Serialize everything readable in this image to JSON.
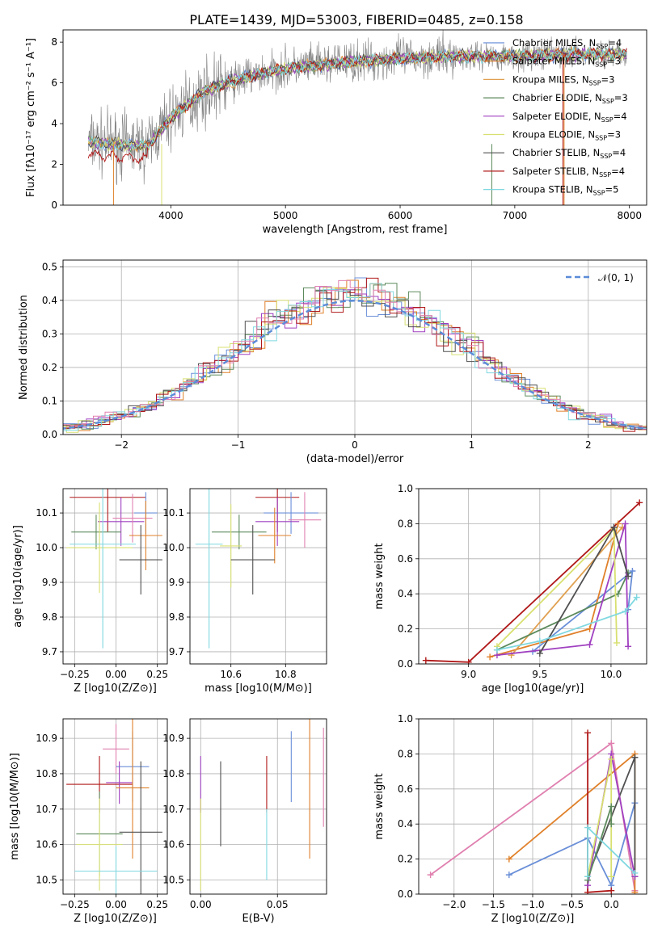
{
  "figure": {
    "title": "PLATE=1439, MJD=53003, FIBERID=0485, z=0.158"
  },
  "colors": {
    "Chabrier MILES": "#6a8fd8",
    "Salpeter MILES": "#e0802a",
    "Kroupa MILES": "#e0a050",
    "Chabrier ELODIE": "#5c8a5c",
    "Salpeter ELODIE": "#a040c0",
    "Kroupa ELODIE": "#d8e070",
    "Chabrier STELIB": "#505050",
    "Salpeter STELIB": "#b01818",
    "Kroupa STELIB": "#80d8e0",
    "extra": "#e080b0",
    "normal": "#5b8bd8"
  },
  "chart_data": [
    {
      "type": "line",
      "id": "spectrum",
      "xlabel": "wavelength [Angstrom, rest frame]",
      "ylabel": "Flux [fλ10⁻¹⁷ erg cm⁻² s⁻¹ A⁻¹]",
      "xlim": [
        3060,
        8150
      ],
      "ylim": [
        0,
        8.6
      ],
      "xticks": [
        "4000",
        "5000",
        "6000",
        "7000",
        "8000"
      ],
      "yticks": [
        "0",
        "2",
        "4",
        "6",
        "8"
      ],
      "legend_position": "top-right",
      "legend": [
        {
          "name": "Chabrier MILES",
          "sub": "SSP",
          "n": "=4"
        },
        {
          "name": "Salpeter MILES",
          "sub": "SSP",
          "n": "=3"
        },
        {
          "name": "Kroupa MILES",
          "sub": "SSP",
          "n": "=3"
        },
        {
          "name": "Chabrier ELODIE",
          "sub": "SSP",
          "n": "=3"
        },
        {
          "name": "Salpeter ELODIE",
          "sub": "SSP",
          "n": "=4"
        },
        {
          "name": "Kroupa ELODIE",
          "sub": "SSP",
          "n": "=3"
        },
        {
          "name": "Chabrier STELIB",
          "sub": "SSP",
          "n": "=4"
        },
        {
          "name": "Salpeter STELIB",
          "sub": "SSP",
          "n": "=4"
        },
        {
          "name": "Kroupa STELIB",
          "sub": "SSP",
          "n": "=5"
        }
      ],
      "continuum_x": [
        3280,
        3500,
        3800,
        4000,
        4300,
        4600,
        5000,
        5500,
        6000,
        6500,
        7000,
        7500,
        8000
      ],
      "continuum_y": [
        3.1,
        3.0,
        2.9,
        4.3,
        5.6,
        6.2,
        6.7,
        7.0,
        7.2,
        7.3,
        7.3,
        7.4,
        7.4
      ]
    },
    {
      "type": "bar",
      "id": "residual-histogram",
      "xlabel": "(data-model)/error",
      "ylabel": "Normed distribution",
      "xlim": [
        -2.5,
        2.5
      ],
      "ylim": [
        0,
        0.52
      ],
      "xticks": [
        "−2",
        "−1",
        "0",
        "1",
        "2"
      ],
      "yticks": [
        "0.0",
        "0.1",
        "0.2",
        "0.3",
        "0.4",
        "0.5"
      ],
      "legend": [
        "𝒩(0, 1)"
      ],
      "legend_position": "top-right"
    },
    {
      "type": "scatter",
      "id": "age-vs-Z",
      "xlabel": "Z [log10(Z/Z⊙)]",
      "ylabel": "age  [log10(age/yr)]",
      "xlim": [
        -0.32,
        0.31
      ],
      "ylim": [
        9.665,
        10.17
      ],
      "xticks": [
        "−0.25",
        "0.00",
        "0.25"
      ],
      "yticks": [
        "9.7",
        "9.8",
        "9.9",
        "10.0",
        "10.1"
      ],
      "points": [
        {
          "s": "Salpeter STELIB",
          "x": -0.05,
          "y": 10.145,
          "xerr": 0.23,
          "yerr": 0.1
        },
        {
          "s": "Chabrier MILES",
          "x": 0.18,
          "y": 10.1,
          "xerr": 0.07,
          "yerr": 0.06
        },
        {
          "s": "Salpeter ELODIE",
          "x": 0.03,
          "y": 10.075,
          "xerr": 0.14,
          "yerr": 0.07
        },
        {
          "s": "extra",
          "x": 0.1,
          "y": 10.085,
          "xerr": 0.12,
          "yerr": 0.07
        },
        {
          "s": "Chabrier ELODIE",
          "x": -0.12,
          "y": 10.045,
          "xerr": 0.15,
          "yerr": 0.05
        },
        {
          "s": "Salpeter MILES",
          "x": 0.18,
          "y": 10.035,
          "xerr": 0.1,
          "yerr": 0.1
        },
        {
          "s": "Kroupa ELODIE",
          "x": -0.1,
          "y": 10.0,
          "xerr": 0.2,
          "yerr": 0.13
        },
        {
          "s": "Kroupa STELIB",
          "x": -0.08,
          "y": 10.01,
          "xerr": 0.2,
          "yerr": 0.3
        },
        {
          "s": "Chabrier STELIB",
          "x": 0.15,
          "y": 9.965,
          "xerr": 0.13,
          "yerr": 0.1
        }
      ]
    },
    {
      "type": "scatter",
      "id": "age-vs-mass",
      "xlabel": "mass [log10(M/M⊙)]",
      "ylabel": "",
      "xlim": [
        10.45,
        10.95
      ],
      "ylim": [
        9.665,
        10.17
      ],
      "xticks": [
        "10.6",
        "10.8"
      ],
      "yticks": [
        "9.7",
        "9.8",
        "9.9",
        "10.0",
        "10.1"
      ],
      "points": [
        {
          "s": "Salpeter STELIB",
          "x": 10.77,
          "y": 10.145,
          "xerr": 0.08,
          "yerr": 0.1
        },
        {
          "s": "Chabrier MILES",
          "x": 10.82,
          "y": 10.1,
          "xerr": 0.1,
          "yerr": 0.06
        },
        {
          "s": "extra",
          "x": 10.87,
          "y": 10.08,
          "xerr": 0.06,
          "yerr": 0.08
        },
        {
          "s": "Salpeter ELODIE",
          "x": 10.77,
          "y": 10.075,
          "xerr": 0.08,
          "yerr": 0.07
        },
        {
          "s": "Chabrier ELODIE",
          "x": 10.63,
          "y": 10.045,
          "xerr": 0.1,
          "yerr": 0.05
        },
        {
          "s": "Salpeter MILES",
          "x": 10.76,
          "y": 10.035,
          "xerr": 0.06,
          "yerr": 0.08
        },
        {
          "s": "Kroupa ELODIE",
          "x": 10.6,
          "y": 10.005,
          "xerr": 0.04,
          "yerr": 0.12
        },
        {
          "s": "Kroupa STELIB",
          "x": 10.52,
          "y": 10.01,
          "xerr": 0.05,
          "yerr": 0.3
        },
        {
          "s": "Chabrier STELIB",
          "x": 10.68,
          "y": 9.965,
          "xerr": 0.08,
          "yerr": 0.1
        }
      ]
    },
    {
      "type": "line",
      "id": "weight-vs-age",
      "xlabel": "age  [log10(age/yr)]",
      "ylabel": "mass weight",
      "xlim": [
        8.65,
        10.25
      ],
      "ylim": [
        0,
        1
      ],
      "xticks": [
        "9.0",
        "9.5",
        "10.0"
      ],
      "yticks": [
        "0.0",
        "0.2",
        "0.4",
        "0.6",
        "0.8",
        "1.0"
      ],
      "series": [
        {
          "s": "Salpeter STELIB",
          "points": [
            [
              8.7,
              0.02
            ],
            [
              9.0,
              0.01
            ],
            [
              10.2,
              0.92
            ]
          ]
        },
        {
          "s": "Chabrier MILES",
          "points": [
            [
              9.45,
              0.07
            ],
            [
              10.15,
              0.53
            ],
            [
              10.12,
              0.31
            ]
          ]
        },
        {
          "s": "Salpeter MILES",
          "points": [
            [
              9.15,
              0.04
            ],
            [
              9.85,
              0.2
            ],
            [
              10.05,
              0.8
            ]
          ]
        },
        {
          "s": "Kroupa MILES",
          "points": [
            [
              9.3,
              0.05
            ],
            [
              10.08,
              0.78
            ]
          ]
        },
        {
          "s": "Chabrier ELODIE",
          "points": [
            [
              9.2,
              0.08
            ],
            [
              10.05,
              0.4
            ],
            [
              10.12,
              0.52
            ]
          ]
        },
        {
          "s": "Salpeter ELODIE",
          "points": [
            [
              9.2,
              0.05
            ],
            [
              9.85,
              0.11
            ],
            [
              10.1,
              0.8
            ],
            [
              10.12,
              0.1
            ]
          ]
        },
        {
          "s": "Kroupa ELODIE",
          "points": [
            [
              9.2,
              0.1
            ],
            [
              10.02,
              0.77
            ],
            [
              10.04,
              0.12
            ]
          ]
        },
        {
          "s": "Chabrier STELIB",
          "points": [
            [
              9.5,
              0.06
            ],
            [
              10.02,
              0.78
            ],
            [
              10.12,
              0.5
            ]
          ]
        },
        {
          "s": "Kroupa STELIB",
          "points": [
            [
              9.2,
              0.08
            ],
            [
              9.5,
              0.13
            ],
            [
              10.1,
              0.3
            ],
            [
              10.18,
              0.38
            ]
          ]
        }
      ]
    },
    {
      "type": "scatter",
      "id": "mass-vs-Z",
      "xlabel": "Z [log10(Z/Z⊙)]",
      "ylabel": "mass [log10(M/M⊙)]",
      "xlim": [
        -0.32,
        0.31
      ],
      "ylim": [
        10.46,
        10.955
      ],
      "xticks": [
        "−0.25",
        "0.00",
        "0.25"
      ],
      "yticks": [
        "10.5",
        "10.6",
        "10.7",
        "10.8",
        "10.9"
      ],
      "points": [
        {
          "s": "extra",
          "x": 0.0,
          "y": 10.87,
          "xerr": 0.08,
          "yerr": 0.07
        },
        {
          "s": "Chabrier MILES",
          "x": 0.1,
          "y": 10.82,
          "xerr": 0.1,
          "yerr": 0.1
        },
        {
          "s": "Salpeter STELIB",
          "x": -0.1,
          "y": 10.77,
          "xerr": 0.2,
          "yerr": 0.08
        },
        {
          "s": "Salpeter ELODIE",
          "x": 0.02,
          "y": 10.775,
          "xerr": 0.08,
          "yerr": 0.06
        },
        {
          "s": "Salpeter MILES",
          "x": 0.1,
          "y": 10.76,
          "xerr": 0.1,
          "yerr": 0.2
        },
        {
          "s": "Chabrier STELIB",
          "x": 0.15,
          "y": 10.635,
          "xerr": 0.13,
          "yerr": 0.2
        },
        {
          "s": "Chabrier ELODIE",
          "x": -0.1,
          "y": 10.63,
          "xerr": 0.14,
          "yerr": 0.12
        },
        {
          "s": "Kroupa ELODIE",
          "x": -0.1,
          "y": 10.6,
          "xerr": 0.14,
          "yerr": 0.13
        },
        {
          "s": "Kroupa STELIB",
          "x": 0.0,
          "y": 10.525,
          "xerr": 0.25,
          "yerr": 0.07
        }
      ]
    },
    {
      "type": "scatter",
      "id": "mass-vs-EBV",
      "xlabel": "E(B-V)",
      "ylabel": "",
      "xlim": [
        -0.007,
        0.082
      ],
      "ylim": [
        10.46,
        10.955
      ],
      "xticks": [
        "0.00",
        "0.05"
      ],
      "yticks": [
        "10.5",
        "10.6",
        "10.7",
        "10.8",
        "10.9"
      ],
      "points": [
        {
          "s": "Salpeter ELODIE",
          "x": 0.0,
          "y": 10.77,
          "yerr": 0.08
        },
        {
          "s": "Kroupa ELODIE",
          "x": 0.0,
          "y": 10.6,
          "yerr": 0.13
        },
        {
          "s": "Chabrier STELIB",
          "x": 0.013,
          "y": 10.715,
          "yerr": 0.12
        },
        {
          "s": "Salpeter STELIB",
          "x": 0.043,
          "y": 10.77,
          "yerr": 0.08
        },
        {
          "s": "Kroupa STELIB",
          "x": 0.043,
          "y": 10.6,
          "yerr": 0.1
        },
        {
          "s": "Chabrier MILES",
          "x": 0.059,
          "y": 10.82,
          "yerr": 0.1
        },
        {
          "s": "Salpeter MILES",
          "x": 0.071,
          "y": 10.76,
          "yerr": 0.2
        },
        {
          "s": "extra",
          "x": 0.08,
          "y": 10.79,
          "yerr": 0.14
        }
      ]
    },
    {
      "type": "line",
      "id": "weight-vs-Z",
      "xlabel": "Z [log10(Z/Z⊙)]",
      "ylabel": "mass weight",
      "xlim": [
        -2.45,
        0.45
      ],
      "ylim": [
        0,
        1
      ],
      "xticks": [
        "−2.0",
        "−1.5",
        "−1.0",
        "−0.5",
        "0.0"
      ],
      "yticks": [
        "0.0",
        "0.2",
        "0.4",
        "0.6",
        "0.8",
        "1.0"
      ],
      "series": [
        {
          "s": "extra",
          "points": [
            [
              -2.3,
              0.11
            ],
            [
              0.0,
              0.86
            ],
            [
              0.3,
              0.02
            ]
          ]
        },
        {
          "s": "Salpeter MILES",
          "points": [
            [
              -1.3,
              0.2
            ],
            [
              0.3,
              0.8
            ],
            [
              0.3,
              0.01
            ]
          ]
        },
        {
          "s": "Chabrier MILES",
          "points": [
            [
              -1.3,
              0.11
            ],
            [
              -0.3,
              0.32
            ],
            [
              0.0,
              0.05
            ],
            [
              0.3,
              0.52
            ]
          ]
        },
        {
          "s": "Salpeter STELIB",
          "points": [
            [
              -0.3,
              0.92
            ],
            [
              -0.3,
              0.01
            ],
            [
              0.0,
              0.02
            ]
          ]
        },
        {
          "s": "Chabrier STELIB",
          "points": [
            [
              -0.3,
              0.1
            ],
            [
              0.3,
              0.78
            ],
            [
              0.3,
              0.1
            ]
          ]
        },
        {
          "s": "Salpeter ELODIE",
          "points": [
            [
              -0.3,
              0.05
            ],
            [
              0.0,
              0.8
            ],
            [
              0.3,
              0.1
            ]
          ]
        },
        {
          "s": "Kroupa ELODIE",
          "points": [
            [
              -0.3,
              0.1
            ],
            [
              0.0,
              0.77
            ],
            [
              0.0,
              0.1
            ]
          ]
        },
        {
          "s": "Chabrier ELODIE",
          "points": [
            [
              -0.3,
              0.08
            ],
            [
              0.0,
              0.5
            ],
            [
              0.0,
              0.4
            ]
          ]
        },
        {
          "s": "Kroupa STELIB",
          "points": [
            [
              -0.3,
              0.1
            ],
            [
              -0.3,
              0.38
            ],
            [
              0.3,
              0.12
            ]
          ]
        }
      ]
    }
  ]
}
